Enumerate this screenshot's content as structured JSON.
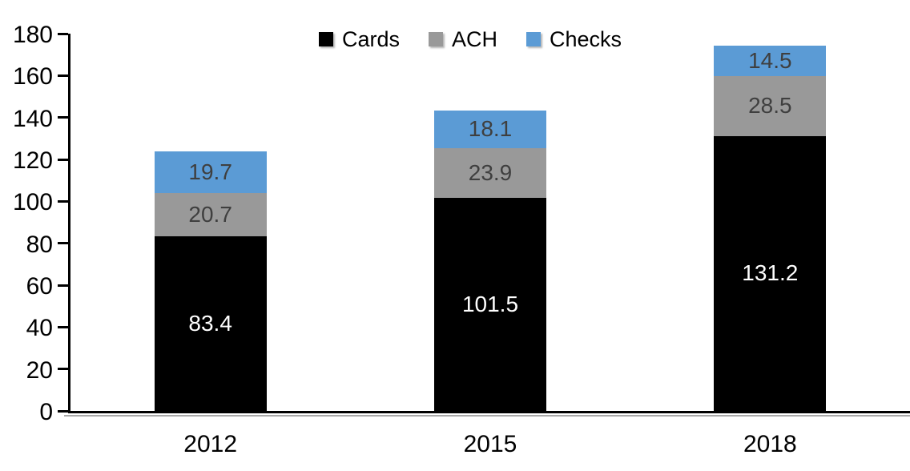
{
  "chart_data": {
    "type": "bar",
    "stacked": true,
    "title": "",
    "xlabel": "",
    "ylabel": "",
    "categories": [
      "2012",
      "2015",
      "2018"
    ],
    "series": [
      {
        "name": "Cards",
        "values": [
          83.4,
          101.5,
          131.2
        ],
        "color": "#000000",
        "label_color": "#ffffff"
      },
      {
        "name": "ACH",
        "values": [
          20.7,
          23.9,
          28.5
        ],
        "color": "#999999",
        "label_color": "#3f3f3f"
      },
      {
        "name": "Checks",
        "values": [
          19.7,
          18.1,
          14.5
        ],
        "color": "#5b9bd5",
        "label_color": "#3f3f3f"
      }
    ],
    "ylim": [
      0,
      180
    ],
    "ytick_step": 20,
    "grid": false,
    "legend_position": "top-center",
    "axis_color": "#000000",
    "background": "#ffffff"
  }
}
